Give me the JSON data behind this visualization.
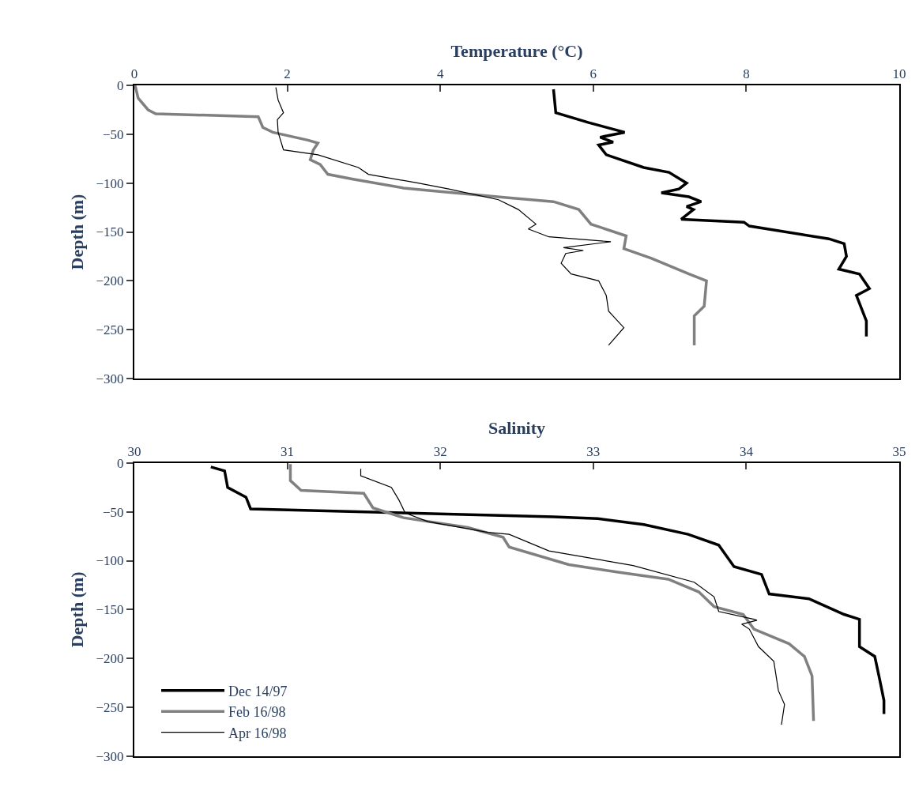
{
  "chart_data": [
    {
      "type": "line",
      "xlabel": "Temperature (°C)",
      "ylabel": "Depth (m)",
      "xlim": [
        0,
        10
      ],
      "xticks": [
        0,
        2,
        4,
        6,
        8,
        10
      ],
      "ylim": [
        -300,
        0
      ],
      "yticks": [
        -300,
        -250,
        -200,
        -150,
        -100,
        -50,
        0
      ],
      "marker": "none",
      "line_style": "solid",
      "series": [
        {
          "color": "#000000",
          "x": [
            5.48,
            5.51,
            5.94,
            6.41,
            6.09,
            6.26,
            6.07,
            6.17,
            6.66,
            6.99,
            7.22,
            7.12,
            6.89,
            7.25,
            7.41,
            7.22,
            7.31,
            7.15,
            7.97,
            8.04,
            9.08,
            9.28,
            9.31,
            9.21,
            9.48,
            9.61,
            9.44,
            9.57,
            9.57
          ],
          "values": [
            -4,
            -28,
            -38,
            -48,
            -53,
            -58,
            -61,
            -71,
            -84,
            -89,
            -100,
            -106,
            -110,
            -114,
            -119,
            -124,
            -127,
            -137,
            -140,
            -144,
            -157,
            -162,
            -175,
            -188,
            -193,
            -208,
            -215,
            -241,
            -257
          ]
        },
        {
          "color": "#808080",
          "x": [
            0.01,
            0.05,
            0.18,
            0.28,
            1.62,
            1.68,
            1.81,
            2.27,
            2.4,
            2.34,
            2.3,
            2.43,
            2.53,
            2.86,
            3.52,
            4.04,
            4.89,
            5.48,
            5.81,
            5.97,
            6.43,
            6.4,
            6.76,
            7.25,
            7.48,
            7.45,
            7.32,
            7.32
          ],
          "values": [
            0,
            -13,
            -25,
            -29,
            -32,
            -43,
            -48,
            -56,
            -59,
            -66,
            -76,
            -81,
            -91,
            -96,
            -105,
            -109,
            -115,
            -119,
            -127,
            -142,
            -154,
            -167,
            -177,
            -193,
            -200,
            -226,
            -236,
            -266
          ]
        },
        {
          "color": "#000000",
          "x": [
            1.85,
            1.88,
            1.95,
            1.87,
            1.88,
            1.95,
            2.4,
            2.93,
            3.06,
            3.71,
            4.11,
            4.76,
            5.02,
            5.25,
            5.15,
            5.42,
            6.23,
            5.61,
            5.87,
            5.64,
            5.58,
            5.71,
            6.07,
            6.17,
            6.2,
            6.4,
            6.2
          ],
          "values": [
            -2,
            -15,
            -28,
            -35,
            -48,
            -66,
            -71,
            -84,
            -91,
            -100,
            -106,
            -117,
            -127,
            -142,
            -147,
            -155,
            -160,
            -166,
            -169,
            -172,
            -182,
            -193,
            -200,
            -215,
            -231,
            -248,
            -266
          ]
        }
      ]
    },
    {
      "type": "line",
      "xlabel": "Salinity",
      "ylabel": "Depth (m)",
      "xlim": [
        30,
        35
      ],
      "xticks": [
        30,
        31,
        32,
        33,
        34,
        35
      ],
      "ylim": [
        -300,
        0
      ],
      "yticks": [
        -300,
        -250,
        -200,
        -150,
        -100,
        -50,
        0
      ],
      "legend": "bottom left",
      "marker": "none",
      "line_style": "solid",
      "series": [
        {
          "name": "Dec 14/97",
          "color": "#000000",
          "x": [
            30.5,
            30.59,
            30.61,
            30.73,
            30.76,
            32.74,
            33.03,
            33.33,
            33.62,
            33.82,
            33.92,
            34.1,
            34.15,
            34.41,
            34.64,
            34.74,
            34.74,
            34.84,
            34.87,
            34.9,
            34.9
          ],
          "values": [
            -4,
            -8,
            -25,
            -35,
            -47,
            -55,
            -57,
            -63,
            -73,
            -84,
            -106,
            -114,
            -134,
            -139,
            -155,
            -160,
            -188,
            -198,
            -220,
            -243,
            -257
          ]
        },
        {
          "name": "Feb 16/98",
          "color": "#808080",
          "x": [
            31.02,
            31.02,
            31.09,
            31.5,
            31.56,
            31.76,
            32.18,
            32.41,
            32.45,
            32.84,
            33.17,
            33.49,
            33.69,
            33.79,
            33.98,
            34.05,
            34.28,
            34.38,
            34.43,
            34.44
          ],
          "values": [
            -1,
            -18,
            -28,
            -31,
            -46,
            -56,
            -66,
            -76,
            -86,
            -104,
            -112,
            -119,
            -132,
            -147,
            -155,
            -170,
            -185,
            -198,
            -218,
            -264
          ]
        },
        {
          "name": "Apr 16/98",
          "color": "#000000",
          "x": [
            31.48,
            31.48,
            31.68,
            31.73,
            31.77,
            31.92,
            32.31,
            32.45,
            32.71,
            33.26,
            33.66,
            33.79,
            33.82,
            34.05,
            34.07,
            33.97,
            34.02,
            34.08,
            34.18,
            34.21,
            34.25,
            34.23
          ],
          "values": [
            -6,
            -13,
            -25,
            -38,
            -51,
            -60,
            -71,
            -73,
            -90,
            -105,
            -122,
            -137,
            -152,
            -160,
            -161,
            -165,
            -170,
            -188,
            -203,
            -233,
            -247,
            -268
          ]
        }
      ]
    }
  ]
}
